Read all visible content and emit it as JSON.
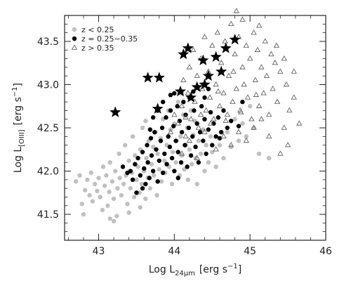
{
  "chart_data": {
    "type": "scatter",
    "title": "",
    "xlabel": {
      "main": "Log L",
      "sub": "24μm",
      "unit": "[erg s",
      "unit_sup": "−1",
      "unit_end": "]"
    },
    "ylabel": {
      "main": "Log L",
      "sub": "[OIII]",
      "unit": "[erg s",
      "unit_sup": "−1",
      "unit_end": "]"
    },
    "xlim": [
      42.55,
      46.0
    ],
    "ylim": [
      41.2,
      43.8
    ],
    "xticks": [
      "43",
      "44",
      "45",
      "46"
    ],
    "xtick_values": [
      43,
      44,
      45,
      46
    ],
    "yticks": [
      "41.5",
      "42.0",
      "42.5",
      "43.0",
      "43.5"
    ],
    "ytick_values": [
      41.5,
      42.0,
      42.5,
      43.0,
      43.5
    ],
    "legend_position": "top-left",
    "series": [
      {
        "name": "z < 0.25",
        "marker": "circle-filled",
        "color": "#c0c0c0",
        "points": [
          [
            42.7,
            41.88
          ],
          [
            42.75,
            41.95
          ],
          [
            42.78,
            41.62
          ],
          [
            42.8,
            41.5
          ],
          [
            42.82,
            41.78
          ],
          [
            42.85,
            41.9
          ],
          [
            42.88,
            41.72
          ],
          [
            42.9,
            41.98
          ],
          [
            42.92,
            41.65
          ],
          [
            42.95,
            41.85
          ],
          [
            42.98,
            41.77
          ],
          [
            43.0,
            41.92
          ],
          [
            43.02,
            41.7
          ],
          [
            43.05,
            41.55
          ],
          [
            43.06,
            42.05
          ],
          [
            43.08,
            41.83
          ],
          [
            43.1,
            41.95
          ],
          [
            43.12,
            41.6
          ],
          [
            43.14,
            41.76
          ],
          [
            43.15,
            42.1
          ],
          [
            43.18,
            41.88
          ],
          [
            43.2,
            41.68
          ],
          [
            43.22,
            42.0
          ],
          [
            43.24,
            41.48
          ],
          [
            43.25,
            41.8
          ],
          [
            43.27,
            42.2
          ],
          [
            43.28,
            41.92
          ],
          [
            43.3,
            41.72
          ],
          [
            43.32,
            42.05
          ],
          [
            43.33,
            41.85
          ],
          [
            43.35,
            42.3
          ],
          [
            43.36,
            41.95
          ],
          [
            43.38,
            41.62
          ],
          [
            43.4,
            42.12
          ],
          [
            43.42,
            41.8
          ],
          [
            43.44,
            41.98
          ],
          [
            43.45,
            42.4
          ],
          [
            43.47,
            41.7
          ],
          [
            43.48,
            42.18
          ],
          [
            43.5,
            41.9
          ],
          [
            43.52,
            42.05
          ],
          [
            43.54,
            41.75
          ],
          [
            43.55,
            42.25
          ],
          [
            43.57,
            41.85
          ],
          [
            43.58,
            42.5
          ],
          [
            43.6,
            42.0
          ],
          [
            43.62,
            41.68
          ],
          [
            43.63,
            42.15
          ],
          [
            43.65,
            41.92
          ],
          [
            43.66,
            42.35
          ],
          [
            43.68,
            41.8
          ],
          [
            43.7,
            42.08
          ],
          [
            43.72,
            42.28
          ],
          [
            43.73,
            41.95
          ],
          [
            43.75,
            42.45
          ],
          [
            43.77,
            41.72
          ],
          [
            43.78,
            42.2
          ],
          [
            43.8,
            42.02
          ],
          [
            43.82,
            42.38
          ],
          [
            43.83,
            41.88
          ],
          [
            43.85,
            42.6
          ],
          [
            43.87,
            42.12
          ],
          [
            43.88,
            41.98
          ],
          [
            43.9,
            42.3
          ],
          [
            43.92,
            42.7
          ],
          [
            43.93,
            42.05
          ],
          [
            43.95,
            42.48
          ],
          [
            43.97,
            41.85
          ],
          [
            43.98,
            42.22
          ],
          [
            44.0,
            42.55
          ],
          [
            44.02,
            42.1
          ],
          [
            44.03,
            42.35
          ],
          [
            44.05,
            42.8
          ],
          [
            44.07,
            41.95
          ],
          [
            44.08,
            42.4
          ],
          [
            44.1,
            42.18
          ],
          [
            44.12,
            42.65
          ],
          [
            44.13,
            42.02
          ],
          [
            44.15,
            42.3
          ],
          [
            44.17,
            42.5
          ],
          [
            44.18,
            41.9
          ],
          [
            44.2,
            42.25
          ],
          [
            44.22,
            42.7
          ],
          [
            44.23,
            42.08
          ],
          [
            44.25,
            42.42
          ],
          [
            44.27,
            42.58
          ],
          [
            44.28,
            42.15
          ],
          [
            44.3,
            41.85
          ],
          [
            44.32,
            42.35
          ],
          [
            44.35,
            42.2
          ],
          [
            44.38,
            42.48
          ],
          [
            44.4,
            42.0
          ],
          [
            44.42,
            42.3
          ],
          [
            44.45,
            42.1
          ],
          [
            44.48,
            42.4
          ],
          [
            44.5,
            42.22
          ],
          [
            44.55,
            42.05
          ],
          [
            44.6,
            42.3
          ],
          [
            44.65,
            42.15
          ],
          [
            44.7,
            42.45
          ],
          [
            44.75,
            42.28
          ],
          [
            44.8,
            42.6
          ],
          [
            44.85,
            42.35
          ],
          [
            44.9,
            42.55
          ],
          [
            44.95,
            42.4
          ],
          [
            45.0,
            42.75
          ],
          [
            45.05,
            42.5
          ],
          [
            45.12,
            42.2
          ],
          [
            45.25,
            42.15
          ],
          [
            43.15,
            41.45
          ],
          [
            43.2,
            41.42
          ],
          [
            43.62,
            42.58
          ],
          [
            43.55,
            41.58
          ],
          [
            43.4,
            41.52
          ],
          [
            44.1,
            42.9
          ]
        ]
      },
      {
        "name": "z = 0.25−0.35",
        "marker": "circle-filled",
        "color": "#000000",
        "points": [
          [
            43.32,
            42.05
          ],
          [
            43.38,
            41.98
          ],
          [
            43.42,
            42.0
          ],
          [
            43.45,
            41.9
          ],
          [
            43.48,
            42.08
          ],
          [
            43.5,
            41.75
          ],
          [
            43.52,
            42.15
          ],
          [
            43.55,
            41.95
          ],
          [
            43.58,
            42.22
          ],
          [
            43.6,
            42.03
          ],
          [
            43.62,
            41.85
          ],
          [
            43.64,
            42.3
          ],
          [
            43.65,
            42.1
          ],
          [
            43.67,
            41.92
          ],
          [
            43.69,
            42.38
          ],
          [
            43.7,
            42.18
          ],
          [
            43.72,
            42.0
          ],
          [
            43.74,
            42.45
          ],
          [
            43.76,
            42.25
          ],
          [
            43.78,
            41.88
          ],
          [
            43.8,
            42.12
          ],
          [
            43.82,
            42.35
          ],
          [
            43.84,
            42.5
          ],
          [
            43.85,
            41.98
          ],
          [
            43.87,
            42.2
          ],
          [
            43.89,
            42.62
          ],
          [
            43.9,
            42.08
          ],
          [
            43.92,
            42.4
          ],
          [
            43.94,
            42.28
          ],
          [
            43.95,
            42.7
          ],
          [
            43.97,
            42.15
          ],
          [
            43.99,
            42.52
          ],
          [
            44.0,
            42.0
          ],
          [
            44.02,
            42.35
          ],
          [
            44.04,
            42.75
          ],
          [
            44.05,
            42.22
          ],
          [
            44.07,
            42.58
          ],
          [
            44.09,
            42.1
          ],
          [
            44.1,
            42.45
          ],
          [
            44.12,
            42.8
          ],
          [
            44.14,
            42.3
          ],
          [
            44.15,
            42.65
          ],
          [
            44.17,
            42.05
          ],
          [
            44.19,
            42.5
          ],
          [
            44.2,
            42.85
          ],
          [
            44.22,
            42.18
          ],
          [
            44.24,
            42.4
          ],
          [
            44.26,
            42.7
          ],
          [
            44.28,
            42.28
          ],
          [
            44.3,
            42.55
          ],
          [
            44.32,
            42.1
          ],
          [
            44.34,
            42.45
          ],
          [
            44.36,
            42.75
          ],
          [
            44.38,
            42.35
          ],
          [
            44.4,
            42.6
          ],
          [
            44.42,
            42.2
          ],
          [
            44.45,
            42.48
          ],
          [
            44.48,
            42.68
          ],
          [
            44.5,
            42.3
          ],
          [
            44.52,
            42.55
          ],
          [
            44.55,
            42.4
          ],
          [
            44.58,
            42.62
          ],
          [
            44.62,
            42.45
          ],
          [
            44.65,
            42.7
          ],
          [
            44.7,
            42.5
          ],
          [
            44.75,
            42.58
          ],
          [
            44.85,
            42.52
          ],
          [
            44.9,
            42.8
          ],
          [
            43.72,
            42.62
          ],
          [
            43.85,
            42.8
          ],
          [
            44.0,
            42.9
          ],
          [
            44.25,
            42.92
          ],
          [
            44.4,
            42.85
          ],
          [
            43.58,
            41.8
          ],
          [
            43.68,
            42.48
          ],
          [
            44.6,
            42.38
          ],
          [
            44.05,
            41.92
          ],
          [
            43.95,
            42.88
          ],
          [
            44.45,
            42.95
          ],
          [
            43.78,
            42.7
          ]
        ]
      },
      {
        "name": "z > 0.35",
        "marker": "triangle-open",
        "color": "#606060",
        "points": [
          [
            44.05,
            42.55
          ],
          [
            44.1,
            42.75
          ],
          [
            44.12,
            43.05
          ],
          [
            44.15,
            42.4
          ],
          [
            44.18,
            42.9
          ],
          [
            44.2,
            43.2
          ],
          [
            44.22,
            42.6
          ],
          [
            44.25,
            43.4
          ],
          [
            44.27,
            42.8
          ],
          [
            44.3,
            43.1
          ],
          [
            44.32,
            42.5
          ],
          [
            44.35,
            43.3
          ],
          [
            44.37,
            42.95
          ],
          [
            44.4,
            43.55
          ],
          [
            44.42,
            42.7
          ],
          [
            44.45,
            43.15
          ],
          [
            44.47,
            42.85
          ],
          [
            44.5,
            43.45
          ],
          [
            44.52,
            42.6
          ],
          [
            44.55,
            43.0
          ],
          [
            44.57,
            43.6
          ],
          [
            44.6,
            42.75
          ],
          [
            44.62,
            43.25
          ],
          [
            44.65,
            42.9
          ],
          [
            44.67,
            43.5
          ],
          [
            44.7,
            42.65
          ],
          [
            44.72,
            43.1
          ],
          [
            44.75,
            43.7
          ],
          [
            44.77,
            42.8
          ],
          [
            44.8,
            43.35
          ],
          [
            44.82,
            42.95
          ],
          [
            44.85,
            43.55
          ],
          [
            44.87,
            42.7
          ],
          [
            44.9,
            43.2
          ],
          [
            44.92,
            43.0
          ],
          [
            44.95,
            43.45
          ],
          [
            44.97,
            42.85
          ],
          [
            45.0,
            43.3
          ],
          [
            45.02,
            42.6
          ],
          [
            45.05,
            43.6
          ],
          [
            45.07,
            43.05
          ],
          [
            45.1,
            43.4
          ],
          [
            45.12,
            42.75
          ],
          [
            45.15,
            43.2
          ],
          [
            45.18,
            42.9
          ],
          [
            45.2,
            43.5
          ],
          [
            45.22,
            43.1
          ],
          [
            45.25,
            42.65
          ],
          [
            45.28,
            43.35
          ],
          [
            45.3,
            42.95
          ],
          [
            45.33,
            43.25
          ],
          [
            45.36,
            42.8
          ],
          [
            45.4,
            43.15
          ],
          [
            45.45,
            42.5
          ],
          [
            45.48,
            43.0
          ],
          [
            45.52,
            42.7
          ],
          [
            45.58,
            42.85
          ],
          [
            45.65,
            42.55
          ],
          [
            45.5,
            42.3
          ],
          [
            45.4,
            42.2
          ],
          [
            44.9,
            43.75
          ],
          [
            44.82,
            43.85
          ],
          [
            44.1,
            42.2
          ],
          [
            44.2,
            42.35
          ],
          [
            44.3,
            42.15
          ],
          [
            44.4,
            42.45
          ],
          [
            44.55,
            42.25
          ],
          [
            44.65,
            42.4
          ],
          [
            44.75,
            42.3
          ],
          [
            44.85,
            42.45
          ],
          [
            44.95,
            42.35
          ],
          [
            45.05,
            42.5
          ],
          [
            45.15,
            42.6
          ],
          [
            45.25,
            42.4
          ],
          [
            44.0,
            42.65
          ],
          [
            43.95,
            42.45
          ],
          [
            44.48,
            42.55
          ],
          [
            44.68,
            42.58
          ],
          [
            44.88,
            42.68
          ],
          [
            45.08,
            42.88
          ],
          [
            45.35,
            43.45
          ],
          [
            45.45,
            43.3
          ],
          [
            45.58,
            43.15
          ],
          [
            44.35,
            42.65
          ],
          [
            44.58,
            42.92
          ],
          [
            44.15,
            42.62
          ],
          [
            44.78,
            43.15
          ],
          [
            45.12,
            43.68
          ]
        ]
      },
      {
        "name": "",
        "marker": "star-filled",
        "color": "#000000",
        "points": [
          [
            43.22,
            42.68
          ],
          [
            43.65,
            43.08
          ],
          [
            43.8,
            43.08
          ],
          [
            43.78,
            42.72
          ],
          [
            44.08,
            42.92
          ],
          [
            44.12,
            43.35
          ],
          [
            44.18,
            43.42
          ],
          [
            44.22,
            42.85
          ],
          [
            44.3,
            42.97
          ],
          [
            44.38,
            43.28
          ],
          [
            44.45,
            43.1
          ],
          [
            44.55,
            43.32
          ],
          [
            44.62,
            43.15
          ],
          [
            44.68,
            43.42
          ],
          [
            44.8,
            43.52
          ],
          [
            44.4,
            43.0
          ]
        ]
      }
    ]
  }
}
